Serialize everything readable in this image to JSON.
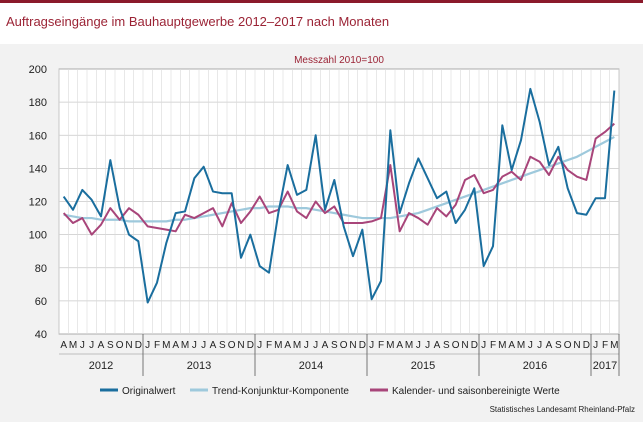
{
  "title": "Auftragseingänge im Bauhauptgewerbe 2012–2017 nach Monaten",
  "source": "Statistisches Landesamt Rheinland-Pfalz",
  "colors": {
    "background_panel": "#f2f2f2",
    "title": "#9b2335",
    "original": "#1a6e9e",
    "trend": "#9ec9dc",
    "adjusted": "#a8457a"
  },
  "chart_data": {
    "type": "line",
    "subtitle": "Messzahl 2010=100",
    "ylim": [
      40,
      200
    ],
    "yticks": [
      40,
      60,
      80,
      100,
      120,
      140,
      160,
      180,
      200
    ],
    "grid": true,
    "legend_position": "bottom",
    "x_month_labels": [
      "A",
      "M",
      "J",
      "J",
      "A",
      "S",
      "O",
      "N",
      "D",
      "J",
      "F",
      "M",
      "A",
      "M",
      "J",
      "J",
      "A",
      "S",
      "O",
      "N",
      "D",
      "J",
      "F",
      "M",
      "A",
      "M",
      "J",
      "J",
      "A",
      "S",
      "O",
      "N",
      "D",
      "J",
      "F",
      "M",
      "A",
      "M",
      "J",
      "J",
      "A",
      "S",
      "O",
      "N",
      "D",
      "J",
      "F",
      "M",
      "A",
      "M",
      "J",
      "J",
      "A",
      "S",
      "O",
      "N",
      "D",
      "J",
      "F",
      "M"
    ],
    "year_labels": [
      {
        "label": "2012",
        "start": 0,
        "end": 9
      },
      {
        "label": "2013",
        "start": 9,
        "end": 21
      },
      {
        "label": "2014",
        "start": 21,
        "end": 33
      },
      {
        "label": "2015",
        "start": 33,
        "end": 45
      },
      {
        "label": "2016",
        "start": 45,
        "end": 57
      },
      {
        "label": "2017",
        "start": 57,
        "end": 60
      }
    ],
    "series": [
      {
        "name": "Originalwert",
        "key": "original",
        "values": [
          123,
          115,
          127,
          121,
          111,
          145,
          116,
          100,
          96,
          59,
          71,
          95,
          113,
          114,
          134,
          141,
          126,
          125,
          125,
          86,
          100,
          81,
          77,
          113,
          142,
          124,
          127,
          160,
          115,
          133,
          105,
          87,
          103,
          61,
          72,
          163,
          113,
          131,
          146,
          134,
          122,
          126,
          107,
          115,
          128,
          81,
          93,
          166,
          139,
          157,
          188,
          168,
          142,
          153,
          128,
          113,
          112,
          122,
          122,
          187
        ]
      },
      {
        "name": "Trend-Konjunktur-Komponente",
        "key": "trend",
        "values": [
          112,
          111,
          110,
          110,
          109,
          109,
          109,
          108,
          108,
          108,
          108,
          108,
          109,
          109,
          110,
          111,
          112,
          113,
          114,
          115,
          116,
          116,
          117,
          117,
          117,
          116,
          116,
          115,
          114,
          113,
          112,
          111,
          110,
          110,
          110,
          110,
          111,
          112,
          113,
          115,
          117,
          119,
          121,
          123,
          125,
          127,
          129,
          131,
          133,
          135,
          137,
          139,
          141,
          143,
          145,
          147,
          150,
          153,
          156,
          159
        ]
      },
      {
        "name": "Kalender- und saisonbereinigte Werte",
        "key": "adjusted",
        "values": [
          113,
          107,
          110,
          100,
          106,
          116,
          109,
          116,
          112,
          105,
          104,
          103,
          102,
          112,
          110,
          113,
          116,
          105,
          119,
          107,
          114,
          123,
          113,
          115,
          126,
          114,
          110,
          120,
          113,
          117,
          107,
          107,
          107,
          108,
          110,
          142,
          102,
          113,
          110,
          106,
          116,
          111,
          118,
          133,
          136,
          125,
          127,
          135,
          138,
          133,
          147,
          144,
          136,
          147,
          139,
          135,
          133,
          158,
          162,
          167
        ]
      }
    ]
  }
}
